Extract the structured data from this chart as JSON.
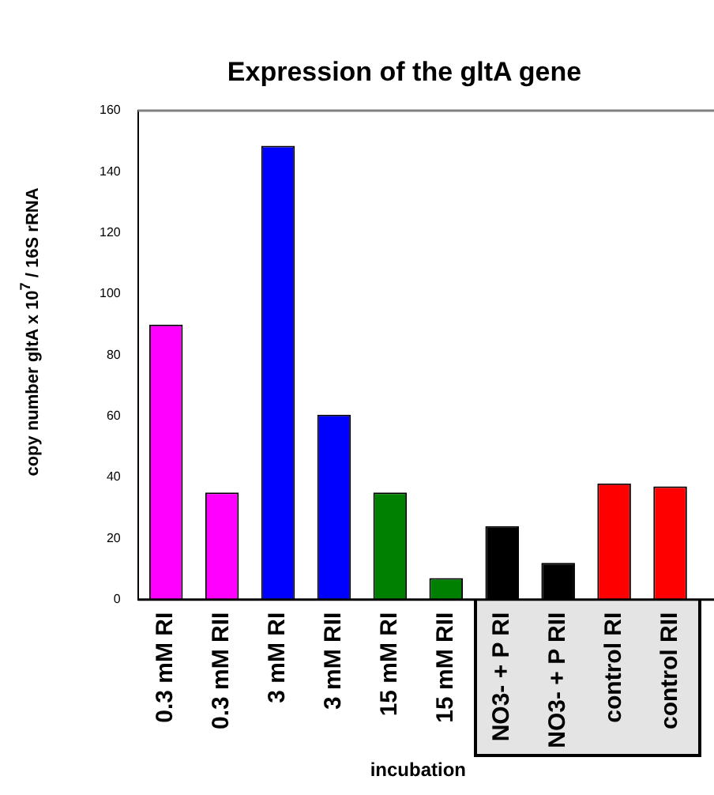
{
  "chart_data": {
    "type": "bar",
    "title": "Expression of the gltA gene",
    "xlabel": "incubation",
    "ylabel": "copy number gltA x 10$^{7}$ / 16S rRNA",
    "categories": [
      "0.3 mM RI",
      "0.3 mM RII",
      "3 mM RI",
      "3 mM RII",
      "15 mM RI",
      "15 mM RII",
      "NO3- + P RI",
      "NO3- + P RII",
      "control RI",
      "control RII"
    ],
    "values": [
      90,
      35,
      148.5,
      60.5,
      35,
      7,
      24,
      12,
      38,
      37
    ],
    "colors": [
      "#ff00ff",
      "#ff00ff",
      "#0000ff",
      "#0000ff",
      "#008000",
      "#008000",
      "#000000",
      "#000000",
      "#ff0000",
      "#ff0000"
    ],
    "ylim": [
      0,
      160
    ],
    "yticks": [
      0,
      20,
      40,
      60,
      80,
      100,
      120,
      140,
      160
    ],
    "grid": false,
    "legend": false
  }
}
